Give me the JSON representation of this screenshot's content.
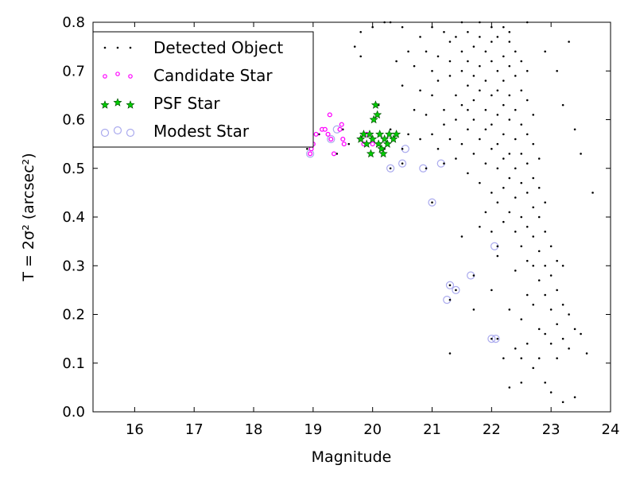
{
  "chart_data": {
    "type": "scatter",
    "xlabel": "Magnitude",
    "ylabel": "T = 2σ² (arcsec²)",
    "xlim": [
      15.3,
      24
    ],
    "ylim": [
      0,
      0.8
    ],
    "xticks": [
      "16",
      "17",
      "18",
      "19",
      "20",
      "21",
      "22",
      "23",
      "24"
    ],
    "yticks": [
      "0.0",
      "0.1",
      "0.2",
      "0.3",
      "0.4",
      "0.5",
      "0.6",
      "0.7",
      "0.8"
    ],
    "grid": false,
    "legend_position": "top-left",
    "series": [
      {
        "name": "Detected Object",
        "marker": "dot",
        "color": "#000000",
        "points": [
          [
            18.9,
            0.54
          ],
          [
            19.0,
            0.55
          ],
          [
            19.1,
            0.57
          ],
          [
            19.2,
            0.58
          ],
          [
            19.3,
            0.56
          ],
          [
            19.3,
            0.61
          ],
          [
            19.4,
            0.53
          ],
          [
            19.5,
            0.58
          ],
          [
            19.5,
            0.56
          ],
          [
            19.6,
            0.55
          ],
          [
            19.8,
            0.56
          ],
          [
            19.9,
            0.57
          ],
          [
            20.0,
            0.55
          ],
          [
            20.1,
            0.61
          ],
          [
            20.1,
            0.63
          ],
          [
            20.2,
            0.54
          ],
          [
            20.3,
            0.58
          ],
          [
            20.3,
            0.5
          ],
          [
            20.5,
            0.51
          ],
          [
            20.5,
            0.54
          ],
          [
            20.6,
            0.57
          ],
          [
            20.8,
            0.56
          ],
          [
            20.9,
            0.5
          ],
          [
            21.0,
            0.43
          ],
          [
            21.2,
            0.51
          ],
          [
            21.3,
            0.23
          ],
          [
            21.3,
            0.26
          ],
          [
            21.4,
            0.25
          ],
          [
            21.7,
            0.28
          ],
          [
            22.0,
            0.15
          ],
          [
            22.1,
            0.15
          ],
          [
            22.1,
            0.34
          ],
          [
            19.7,
            0.75
          ],
          [
            19.8,
            0.73
          ],
          [
            19.8,
            0.78
          ],
          [
            20.0,
            0.79
          ],
          [
            20.2,
            0.8
          ],
          [
            20.3,
            0.8
          ],
          [
            20.4,
            0.72
          ],
          [
            20.5,
            0.79
          ],
          [
            20.5,
            0.67
          ],
          [
            20.6,
            0.74
          ],
          [
            20.7,
            0.71
          ],
          [
            20.7,
            0.62
          ],
          [
            20.8,
            0.77
          ],
          [
            20.8,
            0.66
          ],
          [
            20.9,
            0.74
          ],
          [
            20.9,
            0.61
          ],
          [
            21.0,
            0.79
          ],
          [
            21.0,
            0.7
          ],
          [
            21.0,
            0.65
          ],
          [
            21.0,
            0.57
          ],
          [
            21.1,
            0.73
          ],
          [
            21.1,
            0.68
          ],
          [
            21.1,
            0.54
          ],
          [
            21.2,
            0.78
          ],
          [
            21.2,
            0.62
          ],
          [
            21.2,
            0.59
          ],
          [
            21.3,
            0.76
          ],
          [
            21.3,
            0.72
          ],
          [
            21.3,
            0.69
          ],
          [
            21.3,
            0.56
          ],
          [
            21.4,
            0.77
          ],
          [
            21.4,
            0.65
          ],
          [
            21.4,
            0.6
          ],
          [
            21.4,
            0.52
          ],
          [
            21.5,
            0.8
          ],
          [
            21.5,
            0.74
          ],
          [
            21.5,
            0.7
          ],
          [
            21.5,
            0.63
          ],
          [
            21.5,
            0.55
          ],
          [
            21.6,
            0.78
          ],
          [
            21.6,
            0.72
          ],
          [
            21.6,
            0.67
          ],
          [
            21.6,
            0.58
          ],
          [
            21.6,
            0.49
          ],
          [
            21.7,
            0.75
          ],
          [
            21.7,
            0.69
          ],
          [
            21.7,
            0.64
          ],
          [
            21.7,
            0.6
          ],
          [
            21.7,
            0.53
          ],
          [
            21.8,
            0.8
          ],
          [
            21.8,
            0.77
          ],
          [
            21.8,
            0.71
          ],
          [
            21.8,
            0.66
          ],
          [
            21.8,
            0.56
          ],
          [
            21.8,
            0.47
          ],
          [
            21.9,
            0.74
          ],
          [
            21.9,
            0.68
          ],
          [
            21.9,
            0.62
          ],
          [
            21.9,
            0.58
          ],
          [
            21.9,
            0.51
          ],
          [
            21.9,
            0.41
          ],
          [
            22.0,
            0.79
          ],
          [
            22.0,
            0.76
          ],
          [
            22.0,
            0.72
          ],
          [
            22.0,
            0.65
          ],
          [
            22.0,
            0.59
          ],
          [
            22.0,
            0.54
          ],
          [
            22.0,
            0.45
          ],
          [
            22.0,
            0.37
          ],
          [
            22.1,
            0.77
          ],
          [
            22.1,
            0.7
          ],
          [
            22.1,
            0.66
          ],
          [
            22.1,
            0.61
          ],
          [
            22.1,
            0.55
          ],
          [
            22.1,
            0.5
          ],
          [
            22.1,
            0.43
          ],
          [
            22.1,
            0.32
          ],
          [
            22.2,
            0.79
          ],
          [
            22.2,
            0.73
          ],
          [
            22.2,
            0.68
          ],
          [
            22.2,
            0.63
          ],
          [
            22.2,
            0.57
          ],
          [
            22.2,
            0.52
          ],
          [
            22.2,
            0.46
          ],
          [
            22.2,
            0.39
          ],
          [
            22.2,
            0.11
          ],
          [
            22.3,
            0.76
          ],
          [
            22.3,
            0.71
          ],
          [
            22.3,
            0.65
          ],
          [
            22.3,
            0.6
          ],
          [
            22.3,
            0.53
          ],
          [
            22.3,
            0.48
          ],
          [
            22.3,
            0.41
          ],
          [
            22.3,
            0.21
          ],
          [
            22.3,
            0.05
          ],
          [
            22.4,
            0.74
          ],
          [
            22.4,
            0.69
          ],
          [
            22.4,
            0.62
          ],
          [
            22.4,
            0.56
          ],
          [
            22.4,
            0.5
          ],
          [
            22.4,
            0.44
          ],
          [
            22.4,
            0.37
          ],
          [
            22.4,
            0.29
          ],
          [
            22.4,
            0.13
          ],
          [
            22.5,
            0.72
          ],
          [
            22.5,
            0.66
          ],
          [
            22.5,
            0.59
          ],
          [
            22.5,
            0.53
          ],
          [
            22.5,
            0.47
          ],
          [
            22.5,
            0.4
          ],
          [
            22.5,
            0.34
          ],
          [
            22.5,
            0.19
          ],
          [
            22.5,
            0.06
          ],
          [
            22.6,
            0.7
          ],
          [
            22.6,
            0.64
          ],
          [
            22.6,
            0.57
          ],
          [
            22.6,
            0.51
          ],
          [
            22.6,
            0.45
          ],
          [
            22.6,
            0.38
          ],
          [
            22.6,
            0.31
          ],
          [
            22.6,
            0.24
          ],
          [
            22.6,
            0.14
          ],
          [
            22.7,
            0.61
          ],
          [
            22.7,
            0.55
          ],
          [
            22.7,
            0.48
          ],
          [
            22.7,
            0.42
          ],
          [
            22.7,
            0.36
          ],
          [
            22.7,
            0.3
          ],
          [
            22.7,
            0.22
          ],
          [
            22.7,
            0.09
          ],
          [
            22.8,
            0.52
          ],
          [
            22.8,
            0.46
          ],
          [
            22.8,
            0.4
          ],
          [
            22.8,
            0.33
          ],
          [
            22.8,
            0.27
          ],
          [
            22.8,
            0.17
          ],
          [
            22.8,
            0.11
          ],
          [
            22.9,
            0.43
          ],
          [
            22.9,
            0.37
          ],
          [
            22.9,
            0.3
          ],
          [
            22.9,
            0.24
          ],
          [
            22.9,
            0.16
          ],
          [
            22.9,
            0.06
          ],
          [
            23.0,
            0.34
          ],
          [
            23.0,
            0.28
          ],
          [
            23.0,
            0.21
          ],
          [
            23.0,
            0.14
          ],
          [
            23.0,
            0.04
          ],
          [
            23.1,
            0.31
          ],
          [
            23.1,
            0.25
          ],
          [
            23.1,
            0.18
          ],
          [
            23.1,
            0.11
          ],
          [
            23.2,
            0.3
          ],
          [
            23.2,
            0.22
          ],
          [
            23.2,
            0.15
          ],
          [
            23.2,
            0.02
          ],
          [
            23.3,
            0.76
          ],
          [
            23.3,
            0.2
          ],
          [
            23.3,
            0.13
          ],
          [
            23.4,
            0.58
          ],
          [
            23.4,
            0.17
          ],
          [
            23.4,
            0.03
          ],
          [
            23.5,
            0.53
          ],
          [
            23.5,
            0.16
          ],
          [
            23.6,
            0.12
          ],
          [
            23.7,
            0.45
          ],
          [
            21.3,
            0.12
          ],
          [
            21.7,
            0.21
          ],
          [
            22.0,
            0.25
          ],
          [
            21.5,
            0.36
          ],
          [
            21.8,
            0.38
          ],
          [
            21.6,
            0.62
          ],
          [
            22.3,
            0.78
          ],
          [
            22.6,
            0.8
          ],
          [
            22.9,
            0.74
          ],
          [
            23.1,
            0.7
          ],
          [
            23.2,
            0.63
          ],
          [
            22.5,
            0.11
          ]
        ]
      },
      {
        "name": "Candidate Star",
        "marker": "small-circle",
        "color": "#ff00ff",
        "points": [
          [
            18.95,
            0.53
          ],
          [
            18.97,
            0.54
          ],
          [
            19.0,
            0.55
          ],
          [
            19.05,
            0.57
          ],
          [
            19.15,
            0.58
          ],
          [
            19.2,
            0.58
          ],
          [
            19.25,
            0.57
          ],
          [
            19.28,
            0.61
          ],
          [
            19.3,
            0.56
          ],
          [
            19.35,
            0.53
          ],
          [
            19.45,
            0.58
          ],
          [
            19.48,
            0.59
          ],
          [
            19.5,
            0.56
          ],
          [
            19.52,
            0.55
          ],
          [
            19.8,
            0.56
          ],
          [
            19.85,
            0.55
          ],
          [
            19.9,
            0.57
          ],
          [
            20.0,
            0.55
          ]
        ]
      },
      {
        "name": "PSF Star",
        "marker": "star",
        "color": "#00cc00",
        "points": [
          [
            19.8,
            0.56
          ],
          [
            19.85,
            0.57
          ],
          [
            19.9,
            0.55
          ],
          [
            19.95,
            0.57
          ],
          [
            19.97,
            0.53
          ],
          [
            20.0,
            0.56
          ],
          [
            20.02,
            0.6
          ],
          [
            20.05,
            0.63
          ],
          [
            20.08,
            0.61
          ],
          [
            20.1,
            0.55
          ],
          [
            20.12,
            0.57
          ],
          [
            20.15,
            0.54
          ],
          [
            20.18,
            0.53
          ],
          [
            20.2,
            0.56
          ],
          [
            20.25,
            0.55
          ],
          [
            20.28,
            0.57
          ],
          [
            20.35,
            0.56
          ],
          [
            20.4,
            0.57
          ]
        ]
      },
      {
        "name": "Modest Star",
        "marker": "open-circle",
        "color": "#aaaaee",
        "points": [
          [
            18.95,
            0.53
          ],
          [
            19.3,
            0.56
          ],
          [
            19.4,
            0.58
          ],
          [
            20.3,
            0.5
          ],
          [
            20.5,
            0.51
          ],
          [
            20.55,
            0.54
          ],
          [
            20.85,
            0.5
          ],
          [
            21.0,
            0.43
          ],
          [
            21.15,
            0.51
          ],
          [
            21.25,
            0.23
          ],
          [
            21.3,
            0.26
          ],
          [
            21.4,
            0.25
          ],
          [
            21.65,
            0.28
          ],
          [
            22.0,
            0.15
          ],
          [
            22.07,
            0.15
          ],
          [
            22.05,
            0.34
          ]
        ]
      }
    ]
  },
  "legend": {
    "items": [
      {
        "label": "Detected Object"
      },
      {
        "label": "Candidate Star"
      },
      {
        "label": "PSF Star"
      },
      {
        "label": "Modest Star"
      }
    ]
  }
}
